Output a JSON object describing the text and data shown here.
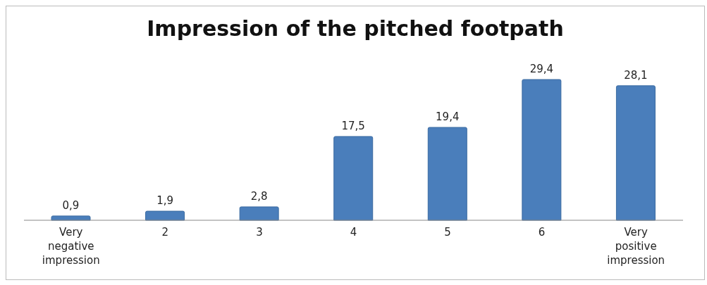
{
  "chart_data": {
    "type": "bar",
    "title": "Impression of the pitched footpath",
    "categories": [
      "Very negative impression",
      "2",
      "3",
      "4",
      "5",
      "6",
      "Very positive impression"
    ],
    "values": [
      0.9,
      1.9,
      2.8,
      17.5,
      19.4,
      29.4,
      28.1
    ],
    "value_labels": [
      "0,9",
      "1,9",
      "2,8",
      "17,5",
      "19,4",
      "29,4",
      "28,1"
    ],
    "color": "#4a7ebb",
    "grid": false,
    "legend": false
  }
}
